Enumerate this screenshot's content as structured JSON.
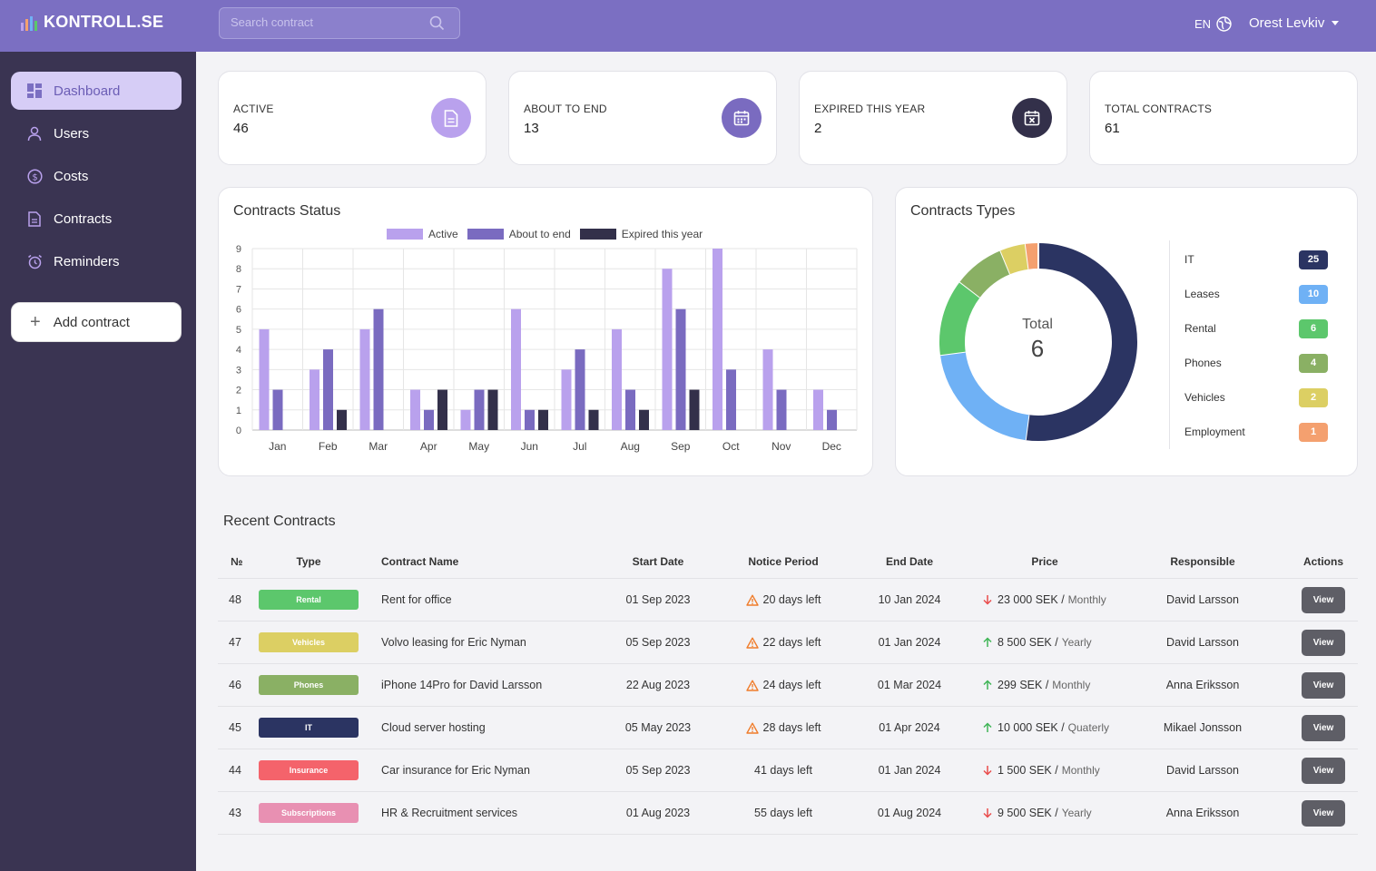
{
  "header": {
    "app_name": "KONTROLL.SE",
    "search_placeholder": "Search contract",
    "language": "EN",
    "user_name": "Orest Levkiv"
  },
  "sidebar": {
    "items": [
      {
        "label": "Dashboard",
        "icon": "dashboard-icon",
        "active": true
      },
      {
        "label": "Users",
        "icon": "user-icon"
      },
      {
        "label": "Costs",
        "icon": "dollar-icon"
      },
      {
        "label": "Contracts",
        "icon": "document-icon"
      },
      {
        "label": "Reminders",
        "icon": "alarm-icon"
      }
    ],
    "add_label": "Add contract"
  },
  "stats": [
    {
      "label": "ACTIVE",
      "value": "46",
      "icon": "document-icon",
      "color": "#b9a1ed"
    },
    {
      "label": "ABOUT TO END",
      "value": "13",
      "icon": "calendar-icon",
      "color": "#7a6bc0"
    },
    {
      "label": "EXPIRED THIS YEAR",
      "value": "2",
      "icon": "calendar-x-icon",
      "color": "#33304a"
    },
    {
      "label": "TOTAL CONTRACTS",
      "value": "61"
    }
  ],
  "status_chart": {
    "title": "Contracts Status"
  },
  "chart_data": [
    {
      "type": "bar",
      "title": "Contracts Status",
      "categories": [
        "Jan",
        "Feb",
        "Mar",
        "Apr",
        "May",
        "Jun",
        "Jul",
        "Aug",
        "Sep",
        "Oct",
        "Nov",
        "Dec"
      ],
      "series": [
        {
          "name": "Active",
          "color": "#b9a1ed",
          "values": [
            5,
            3,
            5,
            2,
            1,
            6,
            3,
            5,
            8,
            9,
            4,
            2
          ]
        },
        {
          "name": "About to end",
          "color": "#7a6bc0",
          "values": [
            2,
            4,
            6,
            1,
            2,
            1,
            4,
            2,
            6,
            3,
            2,
            1
          ]
        },
        {
          "name": "Expired this year",
          "color": "#33304a",
          "values": [
            0,
            1,
            0,
            2,
            2,
            1,
            1,
            1,
            2,
            0,
            0,
            0
          ]
        }
      ],
      "ylim": [
        0,
        9
      ],
      "yticks": [
        0,
        1,
        2,
        3,
        4,
        5,
        6,
        7,
        8,
        9
      ],
      "grid": true,
      "legend": "top-center"
    },
    {
      "type": "pie",
      "title": "Contracts Types",
      "center_label": "Total",
      "center_value": "6",
      "categories": [
        "IT",
        "Leases",
        "Rental",
        "Phones",
        "Vehicles",
        "Employment"
      ],
      "values": [
        25,
        10,
        6,
        4,
        2,
        1
      ],
      "colors": [
        "#2b3462",
        "#6fb1f5",
        "#5cc76c",
        "#8ab064",
        "#dccf63",
        "#f4a06f"
      ]
    }
  ],
  "types_card": {
    "title": "Contracts Types",
    "total_label": "Total",
    "total_value": "6"
  },
  "recent": {
    "title": "Recent Contracts",
    "columns": [
      "№",
      "Type",
      "Contract Name",
      "Start Date",
      "Notice Period",
      "End Date",
      "Price",
      "Responsible",
      "Actions"
    ],
    "view_label": "View",
    "rows": [
      {
        "no": "48",
        "type": "Rental",
        "type_color": "#5cc76c",
        "name": "Rent for office",
        "start": "01 Sep 2023",
        "notice": "20 days left",
        "warn": true,
        "end": "10 Jan 2024",
        "trend": "down",
        "price": "23 000 SEK /",
        "period": "Monthly",
        "responsible": "David Larsson"
      },
      {
        "no": "47",
        "type": "Vehicles",
        "type_color": "#dccf63",
        "name": "Volvo leasing for Eric Nyman",
        "start": "05 Sep 2023",
        "notice": "22 days left",
        "warn": true,
        "end": "01 Jan 2024",
        "trend": "up",
        "price": "8 500 SEK /",
        "period": "Yearly",
        "responsible": "David Larsson"
      },
      {
        "no": "46",
        "type": "Phones",
        "type_color": "#8ab064",
        "name": "iPhone 14Pro for David Larsson",
        "start": "22 Aug 2023",
        "notice": "24 days left",
        "warn": true,
        "end": "01 Mar 2024",
        "trend": "up",
        "price": "299 SEK /",
        "period": "Monthly",
        "responsible": "Anna Eriksson"
      },
      {
        "no": "45",
        "type": "IT",
        "type_color": "#2b3462",
        "name": "Cloud server hosting",
        "start": "05 May 2023",
        "notice": "28 days left",
        "warn": true,
        "end": "01 Apr 2024",
        "trend": "up",
        "price": "10 000 SEK /",
        "period": "Quaterly",
        "responsible": "Mikael Jonsson"
      },
      {
        "no": "44",
        "type": "Insurance",
        "type_color": "#f4636b",
        "name": "Car insurance for Eric Nyman",
        "start": "05 Sep 2023",
        "notice": "41 days left",
        "warn": false,
        "end": "01 Jan 2024",
        "trend": "down",
        "price": "1 500 SEK /",
        "period": "Monthly",
        "responsible": "David Larsson"
      },
      {
        "no": "43",
        "type": "Subscriptions",
        "type_color": "#e890b2",
        "name": "HR & Recruitment services",
        "start": "01 Aug 2023",
        "notice": "55 days left",
        "warn": false,
        "end": "01 Aug 2024",
        "trend": "down",
        "price": "9 500 SEK /",
        "period": "Yearly",
        "responsible": "Anna Eriksson"
      }
    ]
  }
}
